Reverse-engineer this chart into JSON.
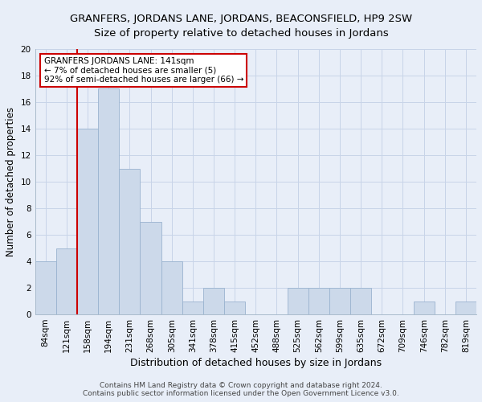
{
  "title_line1": "GRANFERS, JORDANS LANE, JORDANS, BEACONSFIELD, HP9 2SW",
  "title_line2": "Size of property relative to detached houses in Jordans",
  "xlabel": "Distribution of detached houses by size in Jordans",
  "ylabel": "Number of detached properties",
  "bar_labels": [
    "84sqm",
    "121sqm",
    "158sqm",
    "194sqm",
    "231sqm",
    "268sqm",
    "305sqm",
    "341sqm",
    "378sqm",
    "415sqm",
    "452sqm",
    "488sqm",
    "525sqm",
    "562sqm",
    "599sqm",
    "635sqm",
    "672sqm",
    "709sqm",
    "746sqm",
    "782sqm",
    "819sqm"
  ],
  "bar_values": [
    4,
    5,
    14,
    17,
    11,
    7,
    4,
    1,
    2,
    1,
    0,
    0,
    2,
    2,
    2,
    2,
    0,
    0,
    1,
    0,
    1
  ],
  "bar_color": "#ccd9ea",
  "bar_edge_color": "#9ab3cf",
  "vline_color": "#cc0000",
  "vline_position": 2,
  "annotation_text": "GRANFERS JORDANS LANE: 141sqm\n← 7% of detached houses are smaller (5)\n92% of semi-detached houses are larger (66) →",
  "annotation_box_facecolor": "#ffffff",
  "annotation_box_edgecolor": "#cc0000",
  "ylim": [
    0,
    20
  ],
  "yticks": [
    0,
    2,
    4,
    6,
    8,
    10,
    12,
    14,
    16,
    18,
    20
  ],
  "grid_color": "#c8d4e8",
  "background_color": "#e8eef8",
  "footer_text": "Contains HM Land Registry data © Crown copyright and database right 2024.\nContains public sector information licensed under the Open Government Licence v3.0.",
  "title1_fontsize": 9.5,
  "title2_fontsize": 9.5,
  "xlabel_fontsize": 9,
  "ylabel_fontsize": 8.5,
  "tick_fontsize": 7.5,
  "annotation_fontsize": 7.5,
  "footer_fontsize": 6.5
}
